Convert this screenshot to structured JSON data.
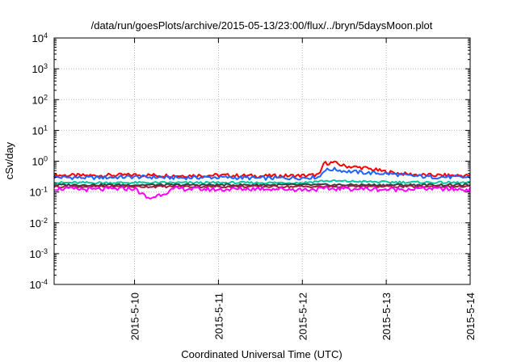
{
  "chart_data": {
    "type": "line",
    "title": "/data/run/goesPlots/archive/2015-05-13/23:00/flux/../bryn/5daysMoon.plot",
    "xlabel": "Coordinated Universal Time (UTC)",
    "ylabel": "cSv/day",
    "y_scale": "log",
    "ylim": [
      0.0001,
      10000
    ],
    "y_ticks": [
      {
        "value": 0.0001,
        "mantissa": "10",
        "exp": "-4"
      },
      {
        "value": 0.001,
        "mantissa": "10",
        "exp": "-3"
      },
      {
        "value": 0.01,
        "mantissa": "10",
        "exp": "-2"
      },
      {
        "value": 0.1,
        "mantissa": "10",
        "exp": "-1"
      },
      {
        "value": 1,
        "mantissa": "10",
        "exp": "0"
      },
      {
        "value": 10,
        "mantissa": "10",
        "exp": "1"
      },
      {
        "value": 100,
        "mantissa": "10",
        "exp": "2"
      },
      {
        "value": 1000,
        "mantissa": "10",
        "exp": "3"
      },
      {
        "value": 10000,
        "mantissa": "10",
        "exp": "4"
      }
    ],
    "xlim": [
      "2015-05-09T01:00",
      "2015-05-14T00:00"
    ],
    "x_ticks": [
      "2015-5-10",
      "2015-5-11",
      "2015-5-12",
      "2015-5-13",
      "2015-5-14"
    ],
    "grid": true,
    "series": [
      {
        "color": "#ff0000",
        "x": [
          "2015-05-09T01:00",
          "2015-05-09T12:00",
          "2015-05-10T00:00",
          "2015-05-10T12:00",
          "2015-05-11T00:00",
          "2015-05-11T12:00",
          "2015-05-12T00:00",
          "2015-05-12T05:00",
          "2015-05-12T06:00",
          "2015-05-12T09:00",
          "2015-05-12T12:00",
          "2015-05-12T18:00",
          "2015-05-13T00:00",
          "2015-05-13T06:00",
          "2015-05-13T12:00",
          "2015-05-14T00:00"
        ],
        "values": [
          0.35,
          0.34,
          0.36,
          0.34,
          0.35,
          0.33,
          0.34,
          0.36,
          0.85,
          0.9,
          0.7,
          0.6,
          0.45,
          0.38,
          0.35,
          0.34
        ]
      },
      {
        "color": "#1e64ff",
        "x": [
          "2015-05-09T01:00",
          "2015-05-09T12:00",
          "2015-05-10T00:00",
          "2015-05-10T12:00",
          "2015-05-11T00:00",
          "2015-05-11T12:00",
          "2015-05-12T00:00",
          "2015-05-12T05:00",
          "2015-05-12T06:00",
          "2015-05-12T09:00",
          "2015-05-12T12:00",
          "2015-05-12T18:00",
          "2015-05-13T00:00",
          "2015-05-13T06:00",
          "2015-05-13T12:00",
          "2015-05-14T00:00"
        ],
        "values": [
          0.3,
          0.29,
          0.31,
          0.29,
          0.3,
          0.28,
          0.29,
          0.31,
          0.5,
          0.55,
          0.48,
          0.42,
          0.4,
          0.34,
          0.31,
          0.3
        ]
      },
      {
        "color": "#00c8a0",
        "x": [
          "2015-05-09T01:00",
          "2015-05-10T00:00",
          "2015-05-11T00:00",
          "2015-05-12T00:00",
          "2015-05-12T06:00",
          "2015-05-13T00:00",
          "2015-05-14T00:00"
        ],
        "values": [
          0.2,
          0.2,
          0.2,
          0.2,
          0.23,
          0.21,
          0.2
        ]
      },
      {
        "color": "#3c3c3c",
        "x": [
          "2015-05-09T01:00",
          "2015-05-10T00:00",
          "2015-05-11T00:00",
          "2015-05-12T00:00",
          "2015-05-13T00:00",
          "2015-05-14T00:00"
        ],
        "values": [
          0.17,
          0.17,
          0.17,
          0.17,
          0.17,
          0.17
        ]
      },
      {
        "color": "#a01e3c",
        "x": [
          "2015-05-09T01:00",
          "2015-05-10T00:00",
          "2015-05-11T00:00",
          "2015-05-12T00:00",
          "2015-05-13T00:00",
          "2015-05-14T00:00"
        ],
        "values": [
          0.15,
          0.15,
          0.15,
          0.15,
          0.15,
          0.15
        ]
      },
      {
        "color": "#ff00ff",
        "x": [
          "2015-05-09T01:00",
          "2015-05-09T12:00",
          "2015-05-10T00:00",
          "2015-05-10T04:00",
          "2015-05-10T12:00",
          "2015-05-11T00:00",
          "2015-05-11T12:00",
          "2015-05-12T00:00",
          "2015-05-12T12:00",
          "2015-05-13T00:00",
          "2015-05-13T12:00",
          "2015-05-14T00:00"
        ],
        "values": [
          0.13,
          0.12,
          0.13,
          0.06,
          0.13,
          0.12,
          0.13,
          0.12,
          0.13,
          0.12,
          0.13,
          0.12
        ]
      }
    ]
  }
}
